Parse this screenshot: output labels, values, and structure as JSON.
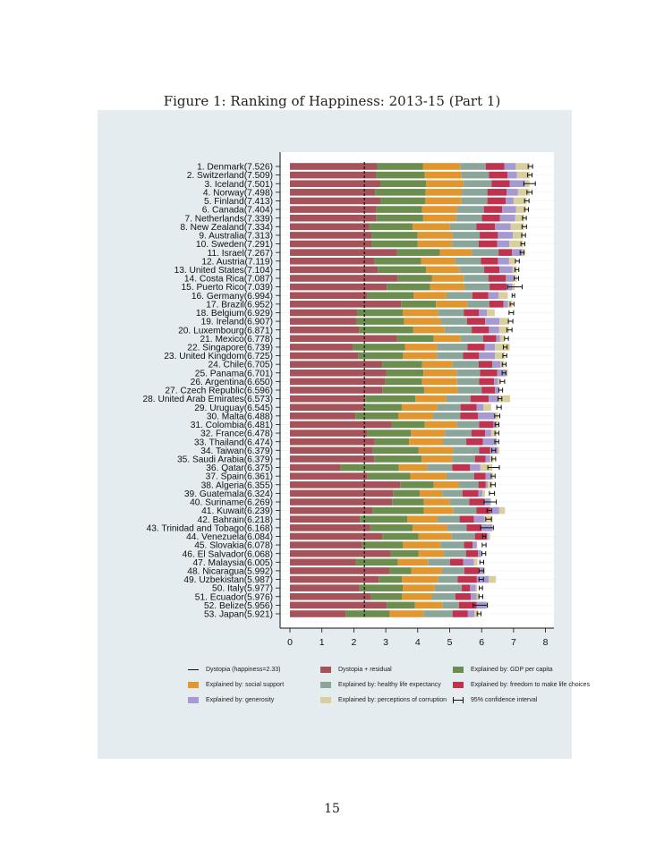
{
  "page": {
    "figure_title": "Figure 1: Ranking of Happiness: 2013-15 (Part 1)",
    "page_number": "15"
  },
  "chart_data": {
    "type": "bar",
    "orientation": "horizontal",
    "stacked": true,
    "title": "Figure 1: Ranking of Happiness: 2013-15 (Part 1)",
    "xlim": [
      0,
      8
    ],
    "x_ticks": [
      "0",
      "1",
      "2",
      "3",
      "4",
      "5",
      "6",
      "7",
      "8"
    ],
    "dystopia_reference": 2.33,
    "categories": [
      "1. Denmark(7.526)",
      "2. Switzerland(7.509)",
      "3. Iceland(7.501)",
      "4. Norway(7.498)",
      "5. Finland(7.413)",
      "6. Canada(7.404)",
      "7. Netherlands(7.339)",
      "8. New Zealand(7.334)",
      "9. Australia(7.313)",
      "10. Sweden(7.291)",
      "11. Israel(7.267)",
      "12. Austria(7.119)",
      "13. United States(7.104)",
      "14. Costa Rica(7.087)",
      "15. Puerto Rico(7.039)",
      "16. Germany(6.994)",
      "17. Brazil(6.952)",
      "18. Belgium(6.929)",
      "19. Ireland(6.907)",
      "20. Luxembourg(6.871)",
      "21. Mexico(6.778)",
      "22. Singapore(6.739)",
      "23. United Kingdom(6.725)",
      "24. Chile(6.705)",
      "25. Panama(6.701)",
      "26. Argentina(6.650)",
      "27. Czech Republic(6.596)",
      "28. United Arab Emirates(6.573)",
      "29. Uruguay(6.545)",
      "30. Malta(6.488)",
      "31. Colombia(6.481)",
      "32. France(6.478)",
      "33. Thailand(6.474)",
      "34. Taiwan(6.379)",
      "35. Saudi Arabia(6.379)",
      "36. Qatar(6.375)",
      "37. Spain(6.361)",
      "38. Algeria(6.355)",
      "39. Guatemala(6.324)",
      "40. Suriname(6.269)",
      "41. Kuwait(6.239)",
      "42. Bahrain(6.218)",
      "43. Trinidad and Tobago(6.168)",
      "44. Venezuela(6.084)",
      "45. Slovakia(6.078)",
      "46. El Salvador(6.068)",
      "47. Malaysia(6.005)",
      "48. Nicaragua(5.992)",
      "49. Uzbekistan(5.987)",
      "50. Italy(5.977)",
      "51. Ecuador(5.976)",
      "52. Belize(5.956)",
      "53. Japan(5.921)"
    ],
    "scores": [
      7.526,
      7.509,
      7.501,
      7.498,
      7.413,
      7.404,
      7.339,
      7.334,
      7.313,
      7.291,
      7.267,
      7.119,
      7.104,
      7.087,
      7.039,
      6.994,
      6.952,
      6.929,
      6.907,
      6.871,
      6.778,
      6.739,
      6.725,
      6.705,
      6.701,
      6.65,
      6.596,
      6.573,
      6.545,
      6.488,
      6.481,
      6.478,
      6.474,
      6.379,
      6.379,
      6.375,
      6.361,
      6.355,
      6.324,
      6.269,
      6.239,
      6.218,
      6.168,
      6.084,
      6.078,
      6.068,
      6.005,
      5.992,
      5.987,
      5.977,
      5.976,
      5.956,
      5.921
    ],
    "series": [
      {
        "name": "Dystopia + residual",
        "color": "#a5525a",
        "values": [
          2.73,
          2.69,
          2.83,
          2.67,
          2.83,
          2.7,
          2.71,
          2.48,
          2.55,
          2.55,
          3.35,
          2.65,
          2.75,
          3.37,
          3.03,
          2.42,
          3.48,
          2.1,
          2.09,
          2.16,
          3.35,
          1.98,
          2.14,
          2.89,
          3.01,
          2.98,
          2.89,
          2.36,
          2.31,
          2.05,
          3.19,
          2.41,
          2.65,
          2.6,
          2.64,
          1.58,
          2.43,
          3.45,
          3.23,
          3.2,
          2.58,
          2.19,
          2.51,
          2.89,
          2.26,
          3.15,
          2.06,
          3.11,
          2.78,
          2.18,
          2.54,
          3.03,
          1.74
        ]
      },
      {
        "name": "Explained by: GDP per capita",
        "color": "#6b8d4d",
        "values": [
          1.44,
          1.53,
          1.43,
          1.58,
          1.41,
          1.44,
          1.46,
          1.36,
          1.44,
          1.45,
          1.34,
          1.46,
          1.51,
          1.07,
          1.36,
          1.45,
          1.09,
          1.43,
          1.48,
          1.7,
          1.15,
          1.62,
          1.4,
          1.25,
          1.17,
          1.15,
          1.31,
          1.57,
          1.19,
          1.34,
          1.03,
          1.38,
          1.08,
          1.43,
          1.48,
          1.83,
          1.34,
          1.05,
          0.83,
          0.99,
          1.61,
          1.48,
          1.33,
          1.13,
          1.27,
          0.87,
          1.32,
          0.69,
          0.73,
          1.35,
          0.97,
          0.88,
          1.38
        ]
      },
      {
        "name": "Explained by: social support",
        "color": "#e2962e",
        "values": [
          1.16,
          1.15,
          1.18,
          1.13,
          1.13,
          1.1,
          1.03,
          1.17,
          1.1,
          1.08,
          1.0,
          1.06,
          1.04,
          1.0,
          1.07,
          1.03,
          0.98,
          1.11,
          1.15,
          0.98,
          0.84,
          1.01,
          1.06,
          0.95,
          1.04,
          1.1,
          1.05,
          0.96,
          1.11,
          1.09,
          1.0,
          1.06,
          1.06,
          1.08,
          0.96,
          0.88,
          1.13,
          0.78,
          0.71,
          0.82,
          0.93,
          0.95,
          1.09,
          1.04,
          1.18,
          0.8,
          0.94,
          0.96,
          1.13,
          0.99,
          0.93,
          0.86,
          1.06
        ]
      },
      {
        "name": "Explained by: healthy life expectancy",
        "color": "#8aa69b",
        "values": [
          0.8,
          0.86,
          0.87,
          0.8,
          0.81,
          0.83,
          0.81,
          0.83,
          0.85,
          0.83,
          0.84,
          0.81,
          0.78,
          0.77,
          0.79,
          0.81,
          0.69,
          0.8,
          0.82,
          0.85,
          0.71,
          0.95,
          0.82,
          0.82,
          0.73,
          0.69,
          0.75,
          0.76,
          0.73,
          0.85,
          0.7,
          0.83,
          0.73,
          0.81,
          0.71,
          0.79,
          0.87,
          0.62,
          0.63,
          0.6,
          0.72,
          0.69,
          0.6,
          0.73,
          0.74,
          0.69,
          0.69,
          0.7,
          0.61,
          0.86,
          0.74,
          0.52,
          0.91
        ]
      },
      {
        "name": "Explained by: freedom to make life choices",
        "color": "#c0334e",
        "values": [
          0.58,
          0.58,
          0.57,
          0.6,
          0.57,
          0.57,
          0.56,
          0.58,
          0.57,
          0.58,
          0.42,
          0.53,
          0.48,
          0.55,
          0.53,
          0.5,
          0.44,
          0.48,
          0.57,
          0.54,
          0.41,
          0.54,
          0.5,
          0.42,
          0.54,
          0.47,
          0.42,
          0.57,
          0.5,
          0.56,
          0.45,
          0.43,
          0.52,
          0.35,
          0.33,
          0.56,
          0.35,
          0.23,
          0.5,
          0.48,
          0.43,
          0.45,
          0.47,
          0.37,
          0.27,
          0.38,
          0.41,
          0.45,
          0.6,
          0.26,
          0.48,
          0.55,
          0.48
        ]
      },
      {
        "name": "Explained by: generosity",
        "color": "#a59ad2",
        "values": [
          0.36,
          0.29,
          0.48,
          0.36,
          0.25,
          0.44,
          0.48,
          0.49,
          0.47,
          0.38,
          0.33,
          0.35,
          0.41,
          0.24,
          0.18,
          0.32,
          0.14,
          0.25,
          0.45,
          0.32,
          0.12,
          0.32,
          0.5,
          0.26,
          0.26,
          0.12,
          0.11,
          0.32,
          0.21,
          0.52,
          0.1,
          0.19,
          0.43,
          0.23,
          0.14,
          0.32,
          0.18,
          0.06,
          0.13,
          0.17,
          0.28,
          0.33,
          0.33,
          0.05,
          0.13,
          0.1,
          0.34,
          0.16,
          0.37,
          0.18,
          0.18,
          0.31,
          0.2
        ]
      },
      {
        "name": "Explained by: perceptions of corruption",
        "color": "#d8cf9c",
        "values": [
          0.44,
          0.41,
          0.14,
          0.36,
          0.41,
          0.31,
          0.29,
          0.42,
          0.32,
          0.43,
          0.08,
          0.19,
          0.13,
          0.1,
          0.08,
          0.29,
          0.14,
          0.24,
          0.3,
          0.31,
          0.14,
          0.46,
          0.31,
          0.12,
          0.07,
          0.06,
          0.03,
          0.35,
          0.25,
          0.11,
          0.07,
          0.17,
          0.02,
          0.06,
          0.11,
          0.38,
          0.07,
          0.15,
          0.08,
          0.04,
          0.18,
          0.25,
          0.01,
          0.06,
          0.01,
          0.01,
          0.11,
          0.04,
          0.23,
          0.04,
          0.1,
          0.06,
          0.14
        ]
      }
    ],
    "ci_halfwidth": [
      0.07,
      0.07,
      0.18,
      0.08,
      0.07,
      0.06,
      0.06,
      0.07,
      0.06,
      0.06,
      0.06,
      0.06,
      0.06,
      0.07,
      0.23,
      0.04,
      0.06,
      0.07,
      0.07,
      0.08,
      0.06,
      0.06,
      0.06,
      0.06,
      0.06,
      0.07,
      0.06,
      0.06,
      0.07,
      0.08,
      0.06,
      0.06,
      0.06,
      0.06,
      0.06,
      0.18,
      0.06,
      0.07,
      0.08,
      0.19,
      0.07,
      0.09,
      0.2,
      0.05,
      0.06,
      0.06,
      0.06,
      0.07,
      0.07,
      0.05,
      0.06,
      0.22,
      0.06
    ],
    "legend": {
      "placement": "bottom",
      "dystopia": "Dystopia (happiness=2.33)",
      "dystopia_residual": "Dystopia + residual",
      "gdp": "Explained by: GDP per capita",
      "social": "Explained by: social support",
      "health": "Explained by: healthy life expectancy",
      "freedom": "Explained by: freedom to make life choices",
      "generosity": "Explained by: generosity",
      "corruption": "Explained by: perceptions of corruption",
      "ci": "95% confidence interval"
    },
    "grid": true
  }
}
